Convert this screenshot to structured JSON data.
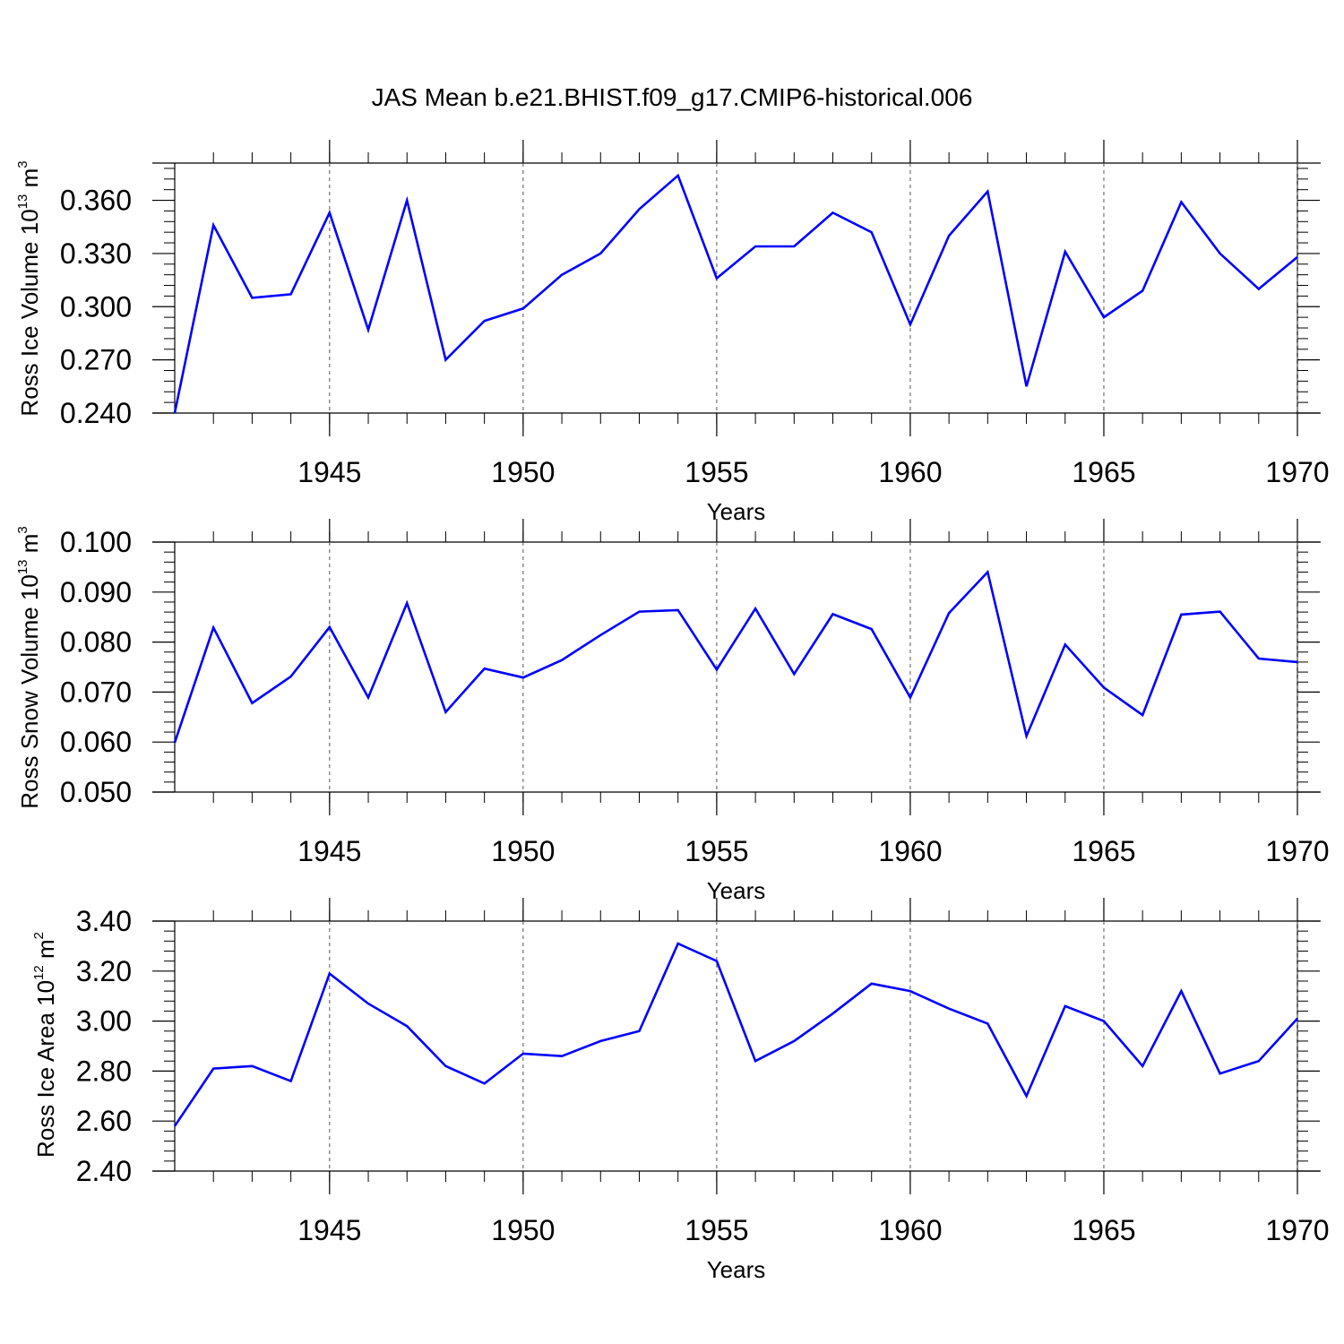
{
  "title": "JAS Mean b.e21.BHIST.f09_g17.CMIP6-historical.006",
  "chart_data": [
    {
      "type": "line",
      "ylabel": {
        "prefix": "Ross Ice Volume 10",
        "exp": "13",
        "unit": " m",
        "unit_exp": "3"
      },
      "xlabel": "Years",
      "xlim": [
        1941,
        1971
      ],
      "ylim": [
        0.24,
        0.381
      ],
      "yticks": [
        0.24,
        0.27,
        0.3,
        0.33,
        0.36
      ],
      "ytick_labels": [
        "0.240",
        "0.270",
        "0.300",
        "0.330",
        "0.360"
      ],
      "xticks": [
        1945,
        1950,
        1955,
        1960,
        1965,
        1970
      ],
      "xtick_labels": [
        "1945",
        "1950",
        "1955",
        "1960",
        "1965",
        "1970"
      ],
      "grid": "vertical dashed at major x ticks",
      "series": [
        {
          "name": "Ross Ice Volume",
          "color": "#0000ff",
          "x": [
            1941,
            1942,
            1943,
            1944,
            1945,
            1946,
            1947,
            1948,
            1949,
            1950,
            1951,
            1952,
            1953,
            1954,
            1955,
            1956,
            1957,
            1958,
            1959,
            1960,
            1961,
            1962,
            1963,
            1964,
            1965,
            1966,
            1967,
            1968,
            1969,
            1970
          ],
          "values": [
            0.24,
            0.346,
            0.305,
            0.307,
            0.353,
            0.287,
            0.36,
            0.27,
            0.292,
            0.299,
            0.318,
            0.33,
            0.355,
            0.374,
            0.316,
            0.334,
            0.334,
            0.353,
            0.342,
            0.29,
            0.34,
            0.365,
            0.255,
            0.331,
            0.294,
            0.309,
            0.359,
            0.33,
            0.31,
            0.328
          ]
        }
      ]
    },
    {
      "type": "line",
      "ylabel": {
        "prefix": "Ross Snow Volume 10",
        "exp": "13",
        "unit": " m",
        "unit_exp": "3"
      },
      "xlabel": "Years",
      "xlim": [
        1941,
        1971
      ],
      "ylim": [
        0.05,
        0.1
      ],
      "yticks": [
        0.05,
        0.06,
        0.07,
        0.08,
        0.09,
        0.1
      ],
      "ytick_labels": [
        "0.050",
        "0.060",
        "0.070",
        "0.080",
        "0.090",
        "0.100"
      ],
      "xticks": [
        1945,
        1950,
        1955,
        1960,
        1965,
        1970
      ],
      "xtick_labels": [
        "1945",
        "1950",
        "1955",
        "1960",
        "1965",
        "1970"
      ],
      "grid": "vertical dashed at major x ticks",
      "series": [
        {
          "name": "Ross Snow Volume",
          "color": "#0000ff",
          "x": [
            1941,
            1942,
            1943,
            1944,
            1945,
            1946,
            1947,
            1948,
            1949,
            1950,
            1951,
            1952,
            1953,
            1954,
            1955,
            1956,
            1957,
            1958,
            1959,
            1960,
            1961,
            1962,
            1963,
            1964,
            1965,
            1966,
            1967,
            1968,
            1969,
            1970
          ],
          "values": [
            0.0599,
            0.0829,
            0.0678,
            0.0731,
            0.083,
            0.0689,
            0.0878,
            0.066,
            0.0747,
            0.0729,
            0.0764,
            0.0814,
            0.0861,
            0.0864,
            0.0745,
            0.0867,
            0.0736,
            0.0856,
            0.0826,
            0.0689,
            0.0858,
            0.094,
            0.0612,
            0.0795,
            0.0709,
            0.0654,
            0.0855,
            0.0861,
            0.0767,
            0.076
          ]
        }
      ]
    },
    {
      "type": "line",
      "ylabel": {
        "prefix": "Ross Ice Area 10",
        "exp": "12",
        "unit": " m",
        "unit_exp": "2"
      },
      "xlabel": "Years",
      "xlim": [
        1941,
        1971
      ],
      "ylim": [
        2.4,
        3.4
      ],
      "yticks": [
        2.4,
        2.6,
        2.8,
        3.0,
        3.2,
        3.4
      ],
      "ytick_labels": [
        "2.40",
        "2.60",
        "2.80",
        "3.00",
        "3.20",
        "3.40"
      ],
      "xticks": [
        1945,
        1950,
        1955,
        1960,
        1965,
        1970
      ],
      "xtick_labels": [
        "1945",
        "1950",
        "1955",
        "1960",
        "1965",
        "1970"
      ],
      "grid": "vertical dashed at major x ticks",
      "series": [
        {
          "name": "Ross Ice Area",
          "color": "#0000ff",
          "x": [
            1941,
            1942,
            1943,
            1944,
            1945,
            1946,
            1947,
            1948,
            1949,
            1950,
            1951,
            1952,
            1953,
            1954,
            1955,
            1956,
            1957,
            1958,
            1959,
            1960,
            1961,
            1962,
            1963,
            1964,
            1965,
            1966,
            1967,
            1968,
            1969,
            1970
          ],
          "values": [
            2.58,
            2.81,
            2.82,
            2.76,
            3.19,
            3.07,
            2.98,
            2.82,
            2.75,
            2.87,
            2.86,
            2.92,
            2.96,
            3.31,
            3.24,
            2.84,
            2.92,
            3.03,
            3.15,
            3.12,
            3.05,
            2.99,
            2.7,
            3.06,
            3.0,
            2.82,
            3.12,
            2.79,
            2.84,
            3.01
          ]
        }
      ]
    }
  ]
}
